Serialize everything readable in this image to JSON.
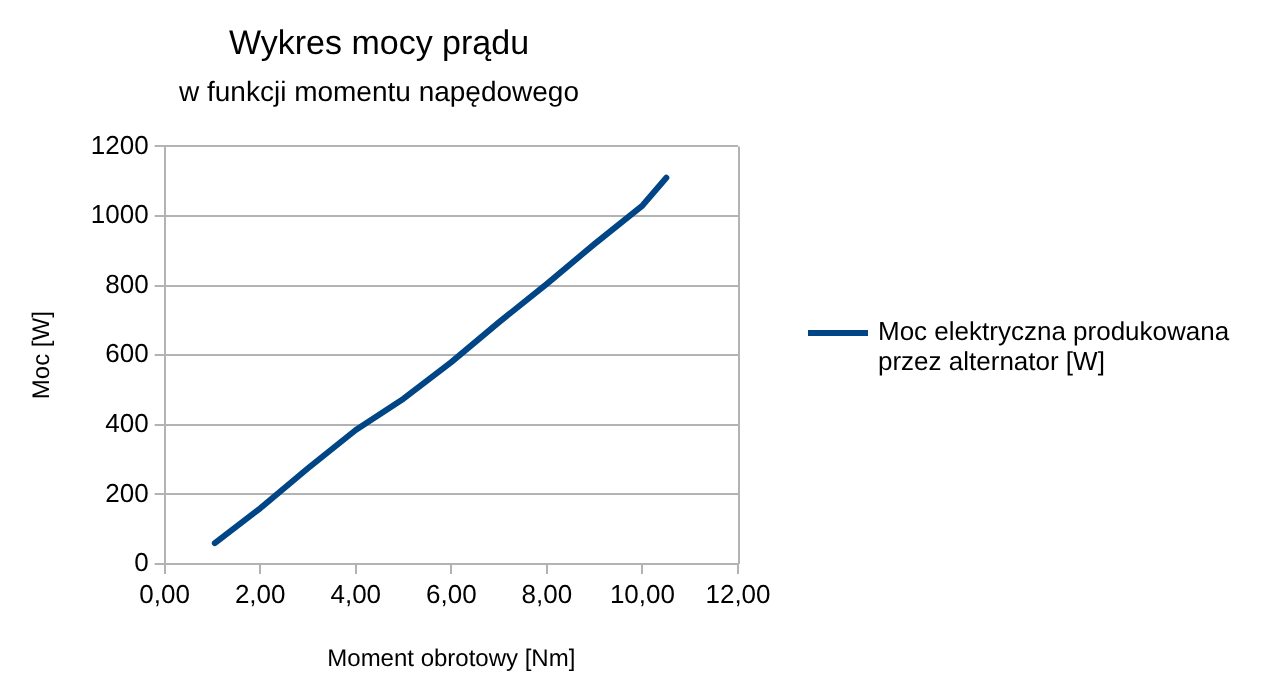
{
  "chart_data": {
    "type": "line",
    "title": "Wykres mocy prądu",
    "subtitle": "w funkcji momentu napędowego",
    "xlabel": "Moment obrotowy [Nm]",
    "ylabel": "Moc [W]",
    "x": [
      1.05,
      2,
      3,
      4,
      5,
      6,
      7,
      8,
      9,
      10,
      10.5
    ],
    "series": [
      {
        "name": "Moc elektryczna produkowana przez alternator [W]",
        "color": "#004586",
        "values": [
          60,
          160,
          275,
          385,
          475,
          580,
          695,
          805,
          920,
          1030,
          1110
        ]
      }
    ],
    "xlim": [
      0,
      12
    ],
    "xticks": [
      {
        "value": 0,
        "label": "0,00"
      },
      {
        "value": 2,
        "label": "2,00"
      },
      {
        "value": 4,
        "label": "4,00"
      },
      {
        "value": 6,
        "label": "6,00"
      },
      {
        "value": 8,
        "label": "8,00"
      },
      {
        "value": 10,
        "label": "10,00"
      },
      {
        "value": 12,
        "label": "12,00"
      }
    ],
    "ylim": [
      0,
      1200
    ],
    "yticks": [
      0,
      200,
      400,
      600,
      800,
      1000,
      1200
    ],
    "grid": "y",
    "legend": "right",
    "marker": "none",
    "line_style": "solid"
  }
}
